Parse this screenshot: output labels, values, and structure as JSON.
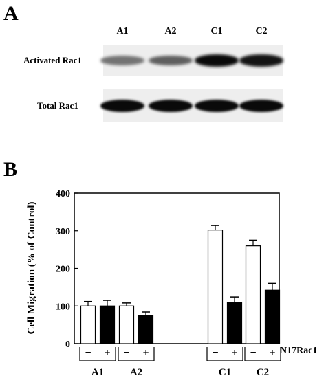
{
  "panel_a": {
    "letter": "A",
    "lanes": [
      "A1",
      "A2",
      "C1",
      "C2"
    ],
    "rows": [
      {
        "label": "Activated Rac1",
        "band_intensity": [
          0.45,
          0.55,
          1.0,
          0.95
        ]
      },
      {
        "label": "Total Rac1",
        "band_intensity": [
          1.0,
          1.0,
          1.0,
          1.0
        ]
      }
    ]
  },
  "panel_b": {
    "letter": "B"
  },
  "chart_data": {
    "type": "bar",
    "title": "",
    "xlabel": "",
    "ylabel": "Cell Migration (% of Control)",
    "ylim": [
      0,
      400
    ],
    "yticks": [
      0,
      100,
      200,
      300,
      400
    ],
    "grid": false,
    "groups": [
      "A1",
      "A2",
      "C1",
      "C2"
    ],
    "treatment_label": "N17Rac1",
    "treatment_signs": [
      "−",
      "+"
    ],
    "series": [
      {
        "sign": "−",
        "color": "#ffffff",
        "values": [
          100,
          100,
          302,
          260
        ],
        "errors": [
          12,
          8,
          12,
          15
        ]
      },
      {
        "sign": "+",
        "color": "#000000",
        "values": [
          100,
          74,
          110,
          142
        ],
        "errors": [
          15,
          10,
          14,
          18
        ]
      }
    ]
  }
}
